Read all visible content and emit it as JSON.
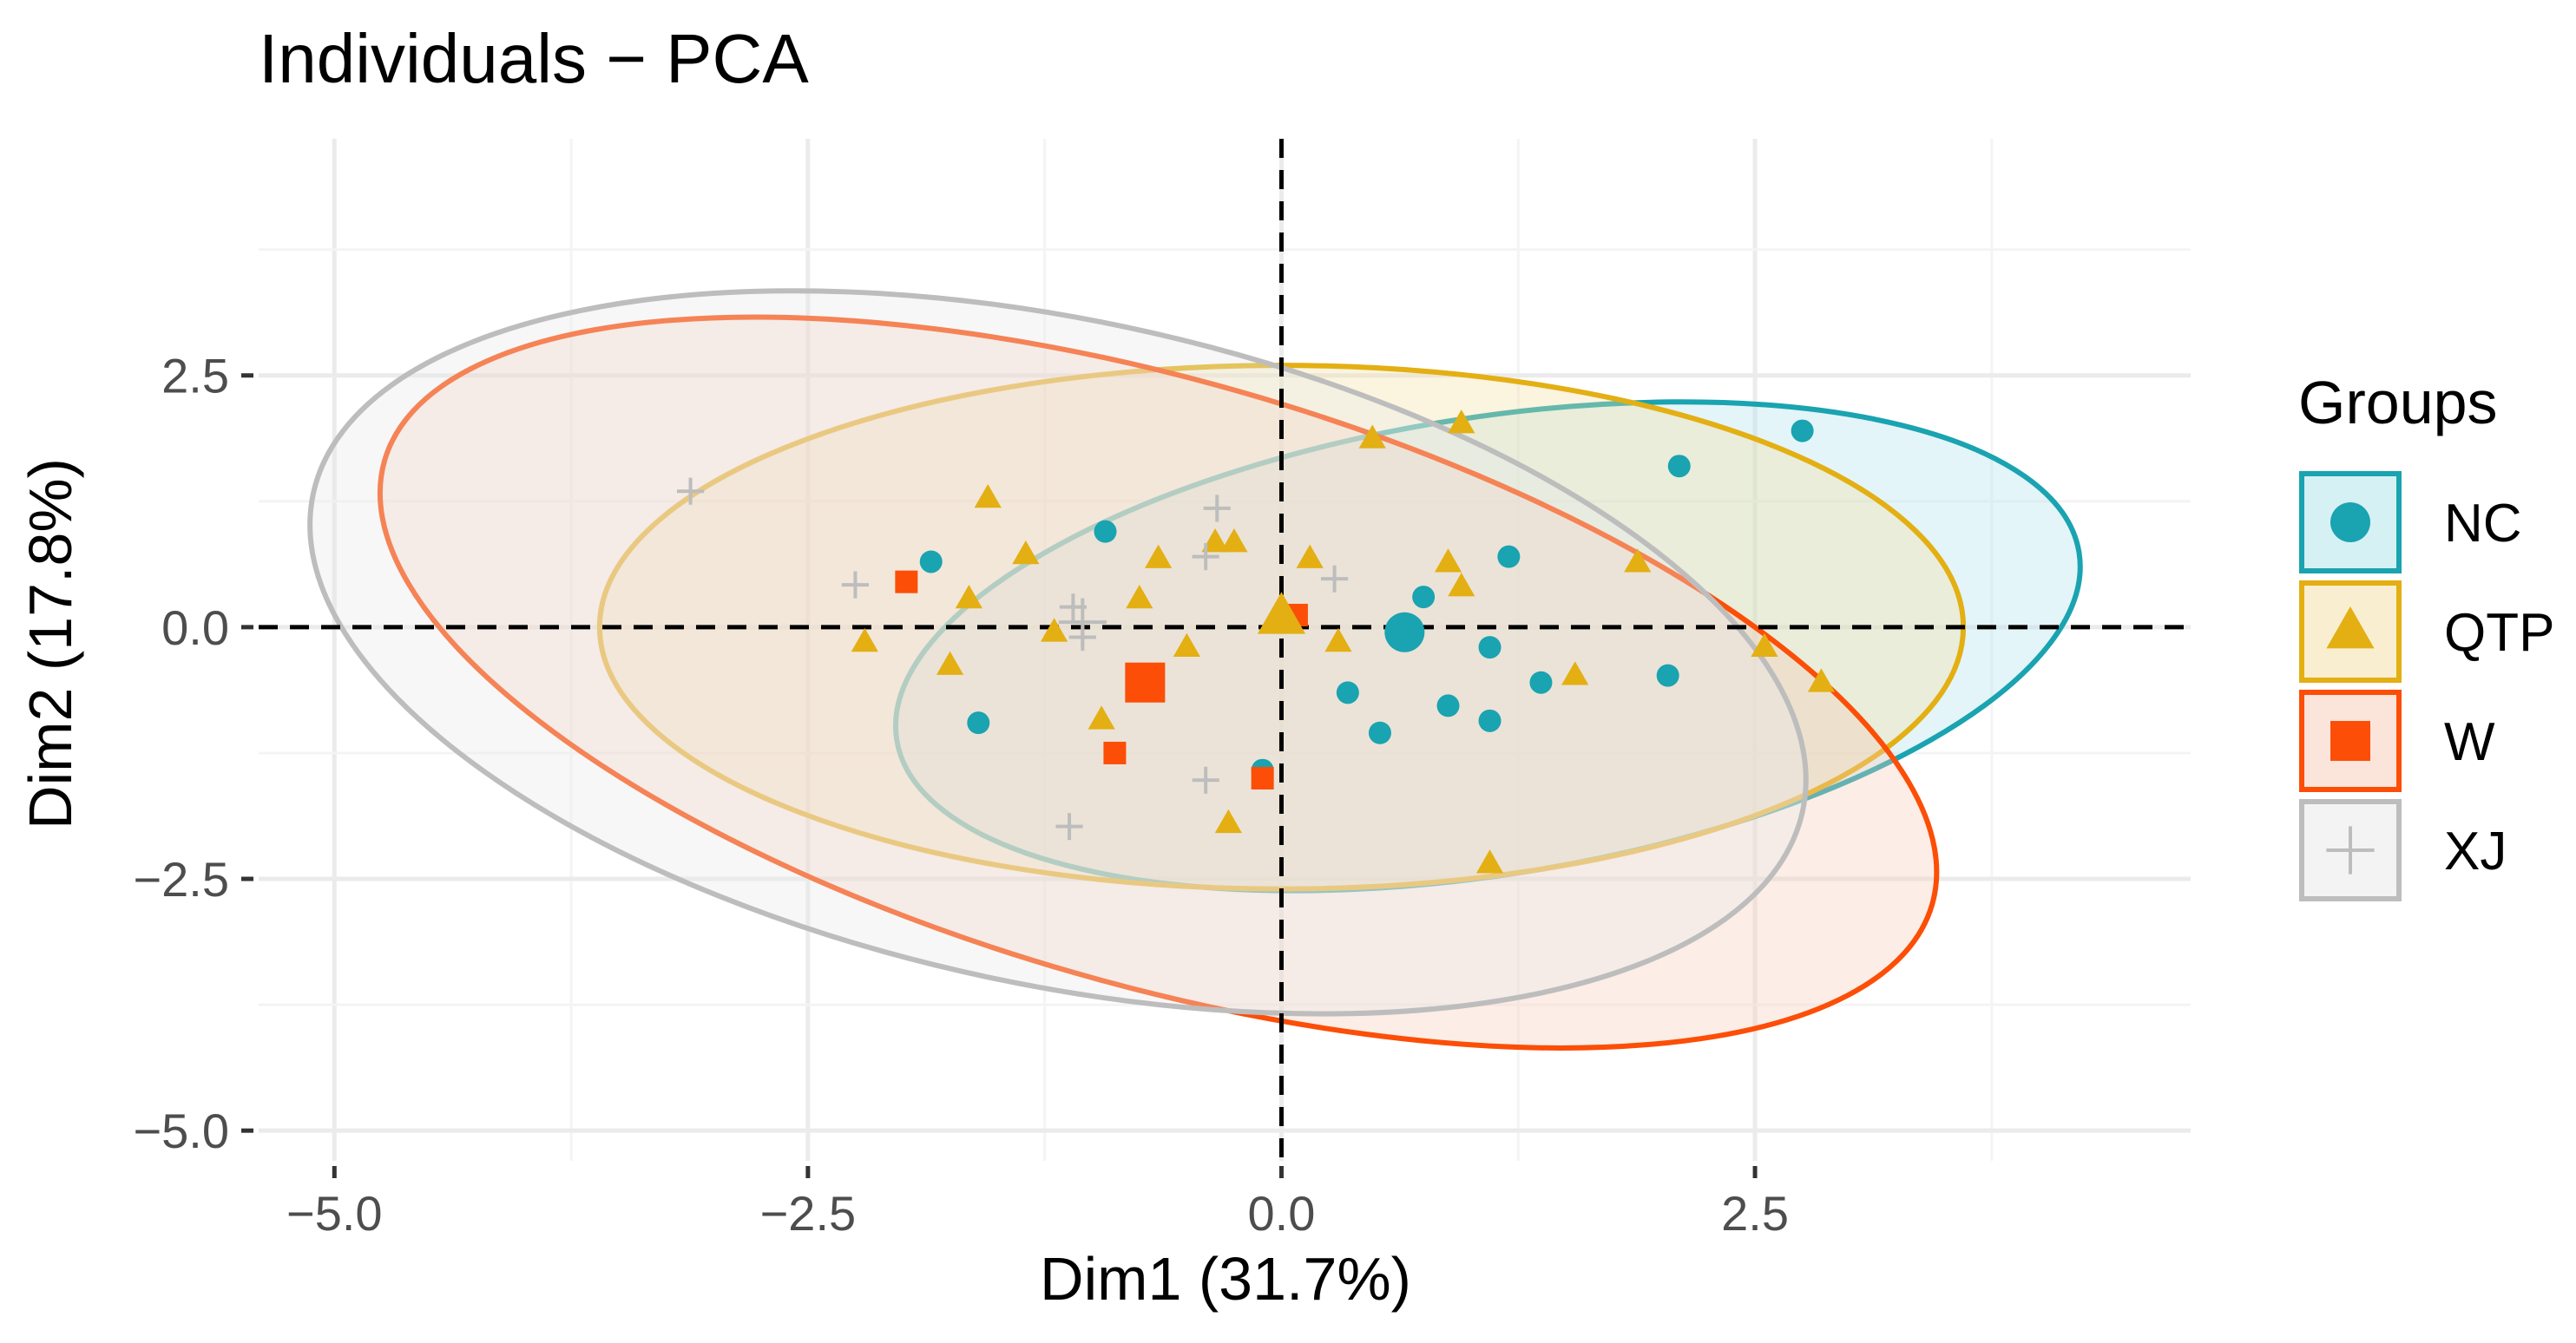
{
  "chart_data": {
    "type": "scatter",
    "title": "Individuals − PCA",
    "xlabel": "Dim1 (31.7%)",
    "ylabel": "Dim2 (17.8%)",
    "xlim": [
      -5.4,
      4.8
    ],
    "ylim": [
      -5.3,
      4.85
    ],
    "x_ticks": [
      -5.0,
      -2.5,
      0.0,
      2.5
    ],
    "x_tick_labels": [
      "−5.0",
      "−2.5",
      "0.0",
      "2.5"
    ],
    "y_ticks": [
      -5.0,
      -2.5,
      0.0,
      2.5
    ],
    "y_tick_labels": [
      "−5.0",
      "−2.5",
      "0.0",
      "2.5"
    ],
    "grid": true,
    "reference_lines": {
      "x": 0,
      "y": 0,
      "style": "dashed"
    },
    "legend": {
      "title": "Groups",
      "position": "right"
    },
    "series": [
      {
        "name": "NC",
        "shape": "circle",
        "color": "#1AA3B0",
        "fill": "#AEE3EA",
        "points": [
          [
            2.75,
            1.95
          ],
          [
            2.1,
            1.6
          ],
          [
            -1.85,
            0.65
          ],
          [
            -0.93,
            0.95
          ],
          [
            0.75,
            0.3
          ],
          [
            1.2,
            0.7
          ],
          [
            1.1,
            -0.2
          ],
          [
            0.35,
            -0.65
          ],
          [
            0.88,
            -0.78
          ],
          [
            1.1,
            -0.93
          ],
          [
            1.37,
            -0.55
          ],
          [
            2.04,
            -0.48
          ],
          [
            0.52,
            -1.05
          ],
          [
            -1.6,
            -0.95
          ],
          [
            -0.1,
            -1.42
          ]
        ],
        "centroid": [
          0.65,
          -0.05
        ],
        "ellipse": {
          "center": [
            1.09,
            -0.19
          ],
          "rx": 3.16,
          "ry": 2.27,
          "rotation": 9
        }
      },
      {
        "name": "QTP",
        "shape": "triangle",
        "color": "#E3AF13",
        "fill": "#F3E0A2",
        "points": [
          [
            0.48,
            1.87
          ],
          [
            0.95,
            2.02
          ],
          [
            -1.55,
            1.28
          ],
          [
            -0.35,
            0.84
          ],
          [
            -0.25,
            0.84
          ],
          [
            -1.35,
            0.72
          ],
          [
            -0.65,
            0.68
          ],
          [
            0.15,
            0.68
          ],
          [
            0.88,
            0.64
          ],
          [
            1.88,
            0.64
          ],
          [
            0.95,
            0.4
          ],
          [
            -1.65,
            0.28
          ],
          [
            -0.75,
            0.28
          ],
          [
            -1.2,
            -0.05
          ],
          [
            -2.2,
            -0.15
          ],
          [
            0.3,
            -0.15
          ],
          [
            -0.5,
            -0.2
          ],
          [
            2.55,
            -0.2
          ],
          [
            -1.75,
            -0.38
          ],
          [
            1.55,
            -0.48
          ],
          [
            2.85,
            -0.55
          ],
          [
            -0.95,
            -0.92
          ],
          [
            -0.28,
            -1.95
          ],
          [
            1.1,
            -2.35
          ]
        ],
        "centroid": [
          0.0,
          0.1
        ],
        "ellipse": {
          "center": [
            0.0,
            0.0
          ],
          "rx": 3.6,
          "ry": 2.6,
          "rotation": 0
        }
      },
      {
        "name": "W",
        "shape": "square",
        "color": "#FC4E07",
        "fill": "#F7CBB8",
        "points": [
          [
            -1.98,
            0.45
          ],
          [
            0.08,
            0.12
          ],
          [
            -0.88,
            -1.25
          ],
          [
            -0.1,
            -1.5
          ]
        ],
        "centroid": [
          -0.72,
          -0.55
        ],
        "ellipse": {
          "center": [
            -0.65,
            -0.55
          ],
          "rx": 4.25,
          "ry": 3.0,
          "rotation": -16
        }
      },
      {
        "name": "XJ",
        "shape": "cross",
        "color": "#BDBDBD",
        "fill": "#E8E8E8",
        "points": [
          [
            -3.12,
            1.35
          ],
          [
            -0.34,
            1.18
          ],
          [
            -0.4,
            0.7
          ],
          [
            -2.25,
            0.42
          ],
          [
            0.28,
            0.48
          ],
          [
            -1.1,
            0.2
          ],
          [
            -1.05,
            -0.1
          ],
          [
            -0.4,
            -1.52
          ],
          [
            -1.12,
            -1.98
          ]
        ],
        "centroid": [
          -1.05,
          0.05
        ],
        "ellipse": {
          "center": [
            -1.18,
            -0.25
          ],
          "rx": 4.02,
          "ry": 3.3,
          "rotation": -12
        }
      }
    ]
  },
  "colors": {
    "panel_background": "#FFFFFF",
    "grid_major": "#EBEBEB",
    "grid_minor": "#F4F4F4",
    "axis_text": "#4D4D4D",
    "reference_line": "#000000"
  }
}
